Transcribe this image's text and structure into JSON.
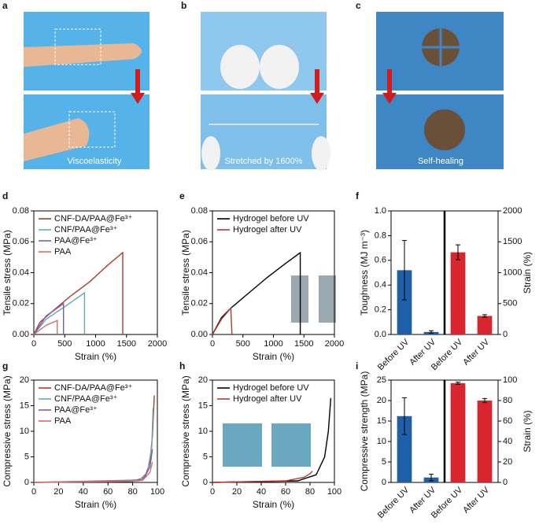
{
  "panels": [
    "a",
    "b",
    "c",
    "d",
    "e",
    "f",
    "g",
    "h",
    "i"
  ],
  "photos": {
    "a": "Viscoelasticity",
    "b": "Stretched by 1600%",
    "c": "Self-healing"
  },
  "chart_data": [
    {
      "type": "line",
      "xlabel": "Strain (%)",
      "ylabel": "Tensile stress (MPa)",
      "xlim": [
        0,
        2000
      ],
      "xticks": [
        0,
        500,
        1000,
        1500,
        2000
      ],
      "ylim": [
        0,
        0.08
      ],
      "yticks": [
        {
          "value": 0,
          "label": "0.00"
        },
        0.02,
        0.04,
        0.06,
        0.08
      ],
      "legend": "upper left",
      "series": [
        {
          "name": "CNF-DA/PAA@Fe³⁺",
          "color": "#b03a2e",
          "x": [
            0,
            100,
            300,
            600,
            900,
            1200,
            1440,
            1440
          ],
          "values": [
            0,
            0.008,
            0.015,
            0.025,
            0.034,
            0.045,
            0.053,
            0
          ]
        },
        {
          "name": "CNF/PAA@Fe³⁺",
          "color": "#6aa8b0",
          "x": [
            0,
            200,
            500,
            820,
            820
          ],
          "values": [
            0,
            0.01,
            0.018,
            0.027,
            0
          ]
        },
        {
          "name": "PAA@Fe³⁺",
          "color": "#7b5ea7",
          "x": [
            0,
            200,
            480,
            480
          ],
          "values": [
            0,
            0.012,
            0.02,
            0
          ]
        },
        {
          "name": "PAA",
          "color": "#d0706a",
          "x": [
            0,
            200,
            380,
            380
          ],
          "values": [
            0,
            0.006,
            0.009,
            0
          ]
        }
      ]
    },
    {
      "type": "line",
      "xlabel": "Strain (%)",
      "ylabel": "Tensile stress (MPa)",
      "xlim": [
        0,
        2000
      ],
      "xticks": [
        0,
        500,
        1000,
        1500,
        2000
      ],
      "ylim": [
        0,
        0.08
      ],
      "yticks": [
        {
          "value": 0,
          "label": "0.00"
        },
        0.02,
        0.04,
        0.06,
        0.08
      ],
      "legend": "upper left",
      "series": [
        {
          "name": "Hydrogel before UV",
          "color": "#000000",
          "x": [
            0,
            150,
            300,
            600,
            900,
            1200,
            1440,
            1440
          ],
          "values": [
            0,
            0.011,
            0.017,
            0.027,
            0.037,
            0.046,
            0.053,
            0
          ]
        },
        {
          "name": "Hydrogel after UV",
          "color": "#b03a2e",
          "x": [
            0,
            150,
            300,
            320
          ],
          "values": [
            0,
            0.01,
            0.017,
            0
          ]
        }
      ]
    },
    {
      "type": "bar",
      "ylabel": "Toughness (MJ m⁻³)",
      "y2label": "Strain (%)",
      "categories": [
        "Before UV",
        "After UV",
        "Before UV",
        "After UV"
      ],
      "ylim": [
        0,
        1
      ],
      "yticks": [
        {
          "value": 0,
          "label": "0.0"
        },
        0.2,
        0.4,
        0.6,
        0.8,
        {
          "value": 1,
          "label": "1.0"
        }
      ],
      "y2lim": [
        0,
        2000
      ],
      "y2ticks": [
        0,
        500,
        1000,
        1500,
        2000
      ],
      "series": [
        {
          "color": "#1f5fa8",
          "values": [
            0.52,
            0.02,
            null,
            null
          ],
          "errors": [
            0.24,
            0.01,
            null,
            null
          ]
        },
        {
          "color": "#d9262e",
          "axis": "y2",
          "values": [
            null,
            null,
            1330,
            300
          ],
          "errors": [
            null,
            null,
            120,
            20
          ]
        }
      ]
    },
    {
      "type": "line",
      "xlabel": "Strain (%)",
      "ylabel": "Compressive stress (MPa)",
      "xlim": [
        0,
        100
      ],
      "xticks": [
        0,
        20,
        40,
        60,
        80,
        100
      ],
      "ylim": [
        0,
        20
      ],
      "yticks": [
        0,
        5,
        10,
        15,
        20
      ],
      "legend": "upper left",
      "series": [
        {
          "name": "CNF-DA/PAA@Fe³⁺",
          "color": "#b03a2e",
          "x": [
            0,
            80,
            90,
            94,
            96,
            97.5
          ],
          "values": [
            0,
            0.2,
            1,
            4,
            9,
            17
          ]
        },
        {
          "name": "CNF/PAA@Fe³⁺",
          "color": "#6aa8b0",
          "x": [
            0,
            85,
            92,
            95.5,
            96.5
          ],
          "values": [
            0,
            0.3,
            2,
            7,
            14.5
          ]
        },
        {
          "name": "PAA@Fe³⁺",
          "color": "#7b5ea7",
          "x": [
            0,
            88,
            94,
            96
          ],
          "values": [
            0,
            0.5,
            3,
            6.5
          ]
        },
        {
          "name": "PAA",
          "color": "#d0706a",
          "x": [
            0,
            88,
            94,
            96
          ],
          "values": [
            0,
            0.4,
            2,
            4
          ]
        }
      ]
    },
    {
      "type": "line",
      "xlabel": "Strain (%)",
      "ylabel": "Compressive stress (MPa)",
      "xlim": [
        0,
        100
      ],
      "xticks": [
        0,
        20,
        40,
        60,
        80,
        100
      ],
      "ylim": [
        0,
        20
      ],
      "yticks": [
        0,
        5,
        10,
        15,
        20
      ],
      "legend": "upper left",
      "series": [
        {
          "name": "Hydrogel before UV",
          "color": "#000000",
          "x": [
            0,
            70,
            85,
            92,
            95,
            97
          ],
          "values": [
            0,
            0.3,
            1.5,
            5,
            10,
            16.5
          ]
        },
        {
          "name": "Hydrogel after UV",
          "color": "#b03a2e",
          "x": [
            0,
            60,
            75,
            80,
            82
          ],
          "values": [
            0,
            0.3,
            1,
            1.7,
            2.2
          ]
        }
      ]
    },
    {
      "type": "bar",
      "ylabel": "Compressive strength (MPa)",
      "y2label": "Strain (%)",
      "categories": [
        "Before UV",
        "After UV",
        "Before UV",
        "After UV"
      ],
      "ylim": [
        0,
        25
      ],
      "yticks": [
        0,
        5,
        10,
        15,
        20,
        25
      ],
      "y2lim": [
        0,
        100
      ],
      "y2ticks": [
        0,
        20,
        40,
        60,
        80,
        100
      ],
      "series": [
        {
          "color": "#1f5fa8",
          "values": [
            16.2,
            1.2,
            null,
            null
          ],
          "errors": [
            4.5,
            0.8,
            null,
            null
          ]
        },
        {
          "color": "#d9262e",
          "axis": "y2",
          "values": [
            null,
            null,
            97,
            80
          ],
          "errors": [
            null,
            null,
            1,
            2
          ]
        }
      ]
    }
  ]
}
